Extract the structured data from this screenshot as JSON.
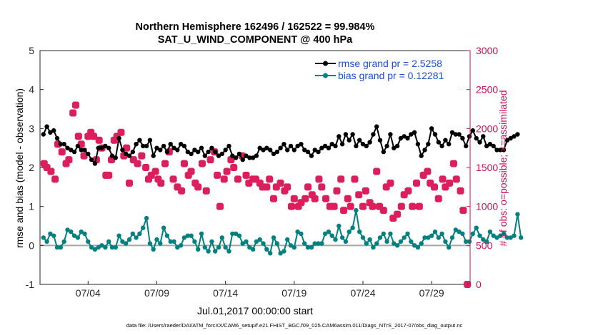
{
  "chart_data": {
    "type": "line",
    "title": "Northern Hemisphere 162496 / 162522 = 99.984%",
    "subtitle": "SAT_U_WIND_COMPONENT @ 400 hPa",
    "xlabel": "Jul.01,2017 00:00:00 start",
    "ylabel": "rmse and bias (model - observation)",
    "y2label": "# of obs: o=possible; ×=assimilated",
    "xlim": [
      0.5,
      31.8
    ],
    "ylim": [
      -1,
      5
    ],
    "y2lim": [
      0,
      3000
    ],
    "x_ticks": [
      {
        "x": 4,
        "label": "07/04"
      },
      {
        "x": 9,
        "label": "07/09"
      },
      {
        "x": 14,
        "label": "07/14"
      },
      {
        "x": 19,
        "label": "07/19"
      },
      {
        "x": 24,
        "label": "07/24"
      },
      {
        "x": 29,
        "label": "07/29"
      }
    ],
    "y_ticks": [
      "-1",
      "0",
      "1",
      "2",
      "3",
      "4",
      "5"
    ],
    "y_tick_values": [
      -1,
      0,
      1,
      2,
      3,
      4,
      5
    ],
    "y2_ticks": [
      "0",
      "500",
      "1000",
      "1500",
      "2000",
      "2500",
      "3000"
    ],
    "y2_tick_values": [
      0,
      500,
      1000,
      1500,
      2000,
      2500,
      3000
    ],
    "legend_position": "top-right",
    "colors": {
      "rmse": "#000000",
      "bias": "#00807f",
      "obs": "#dd1e5d",
      "zero_line": "#a6a6a6",
      "right_axis": "#cc0f52"
    },
    "series": [
      {
        "name": "rmse grand pr = 2.5258",
        "axis": "left",
        "x_start": 0.75,
        "x_step": 0.25,
        "values": [
          2.85,
          3.05,
          2.9,
          2.95,
          2.75,
          2.6,
          2.6,
          2.5,
          2.45,
          2.4,
          2.55,
          2.45,
          2.45,
          2.35,
          2.2,
          2.1,
          2.5,
          2.5,
          2.55,
          2.5,
          2.3,
          2.25,
          2.75,
          2.45,
          2.35,
          2.3,
          2.4,
          2.6,
          2.7,
          2.55,
          2.55,
          2.7,
          2.3,
          2.5,
          2.45,
          2.55,
          2.4,
          2.6,
          2.5,
          2.45,
          2.6,
          2.55,
          2.4,
          2.35,
          2.45,
          2.4,
          2.5,
          2.3,
          2.4,
          2.5,
          2.4,
          2.3,
          2.35,
          2.45,
          2.55,
          2.3,
          2.25,
          2.35,
          2.2,
          2.3,
          2.25,
          2.25,
          2.3,
          2.5,
          2.45,
          2.5,
          2.45,
          2.35,
          2.4,
          2.5,
          2.6,
          2.45,
          2.55,
          2.45,
          2.55,
          2.6,
          2.45,
          2.4,
          2.3,
          2.45,
          2.4,
          2.5,
          2.55,
          2.5,
          2.6,
          2.55,
          2.8,
          2.6,
          2.85,
          2.7,
          2.85,
          2.55,
          2.7,
          2.6,
          2.55,
          2.65,
          2.85,
          3.05,
          2.7,
          2.4,
          2.55,
          2.85,
          2.5,
          2.55,
          2.75,
          2.8,
          2.75,
          2.85,
          2.9,
          2.6,
          2.3,
          2.45,
          2.6,
          3.0,
          2.85,
          2.65,
          2.55,
          2.7,
          2.6,
          2.9,
          2.85,
          2.85,
          2.75,
          2.55,
          2.8,
          2.95,
          2.75,
          2.65,
          2.8,
          2.55,
          2.6,
          2.55,
          2.45,
          2.45,
          2.45,
          2.7,
          2.75,
          2.8,
          2.85
        ]
      },
      {
        "name": "bias grand pr = 0.12281",
        "axis": "left",
        "x_start": 0.75,
        "x_step": 0.25,
        "values": [
          0.2,
          0.1,
          0.3,
          0.25,
          -0.05,
          -0.05,
          0.1,
          0.4,
          0.35,
          0.25,
          0.2,
          0.35,
          0.3,
          0.1,
          -0.05,
          -0.1,
          -0.05,
          0.0,
          -0.05,
          0.1,
          -0.05,
          -0.05,
          0.25,
          0.1,
          0.05,
          0.15,
          0.3,
          0.2,
          0.3,
          0.45,
          0.7,
          0.05,
          -0.1,
          0.15,
          0.05,
          0.45,
          0.25,
          0.1,
          0.1,
          -0.05,
          0.0,
          0.2,
          0.25,
          0.25,
          0.1,
          -0.1,
          0.3,
          -0.05,
          -0.15,
          0.1,
          -0.15,
          -0.05,
          0.2,
          -0.05,
          -0.15,
          0.3,
          0.3,
          0.25,
          0.05,
          0.1,
          -0.05,
          -0.1,
          0.1,
          0.15,
          0.05,
          -0.1,
          -0.2,
          0.2,
          0.05,
          -0.2,
          -0.15,
          0.15,
          0.0,
          -0.05,
          0.35,
          0.3,
          0.05,
          -0.05,
          -0.05,
          0.05,
          0.05,
          0.05,
          0.3,
          0.35,
          0.25,
          0.15,
          0.5,
          0.2,
          0.1,
          0.35,
          0.45,
          0.9,
          0.35,
          0.2,
          0.05,
          0.15,
          -0.05,
          0.05,
          0.2,
          0.3,
          0.1,
          0.3,
          0.05,
          0.0,
          0.1,
          0.2,
          0.3,
          0.1,
          0.0,
          -0.05,
          0.05,
          0.2,
          0.2,
          0.25,
          0.35,
          0.2,
          0.3,
          0.1,
          -0.05,
          0.2,
          0.4,
          0.35,
          0.3,
          0.1,
          0.1,
          0.3,
          0.45,
          0.25,
          0.15,
          0.1,
          0.35,
          0.25,
          0.2,
          0.25,
          0.3,
          0.2,
          0.2,
          0.25,
          0.8,
          0.2
        ]
      },
      {
        "name": "# of obs possible / assimilated",
        "axis": "right",
        "type": "scatter",
        "x": [
          0.8,
          1.0,
          1.3,
          1.6,
          1.8,
          2.1,
          2.4,
          2.6,
          2.9,
          3.1,
          3.3,
          3.5,
          3.7,
          4.0,
          4.2,
          4.4,
          4.6,
          4.8,
          5.0,
          5.3,
          5.5,
          5.7,
          5.9,
          6.1,
          6.4,
          6.6,
          6.8,
          7.0,
          7.3,
          7.6,
          7.9,
          8.2,
          8.4,
          8.6,
          8.9,
          9.1,
          9.3,
          9.6,
          9.9,
          10.2,
          10.5,
          10.8,
          11.0,
          11.3,
          11.5,
          11.8,
          12.0,
          12.3,
          12.6,
          12.9,
          13.2,
          13.4,
          13.6,
          13.9,
          14.1,
          14.4,
          14.6,
          14.9,
          15.2,
          15.5,
          15.7,
          16.0,
          16.2,
          16.5,
          16.7,
          17.0,
          17.2,
          17.5,
          17.7,
          18.0,
          18.3,
          18.5,
          18.8,
          19.0,
          19.3,
          19.5,
          19.8,
          20.0,
          20.3,
          20.5,
          20.8,
          21.0,
          21.3,
          21.6,
          21.9,
          22.1,
          22.4,
          22.6,
          22.9,
          23.1,
          23.4,
          23.7,
          24.0,
          24.2,
          24.5,
          24.7,
          25.0,
          25.2,
          25.5,
          25.7,
          26.0,
          26.2,
          26.5,
          26.8,
          27.0,
          27.3,
          27.6,
          27.9,
          28.1,
          28.4,
          28.7,
          28.9,
          29.2,
          29.5,
          29.8,
          30.0,
          30.3,
          30.6,
          30.8,
          31.1,
          31.3,
          31.6
        ],
        "values": [
          1550,
          1500,
          1450,
          1350,
          1800,
          1700,
          1550,
          1600,
          2200,
          2300,
          1900,
          1800,
          1650,
          1900,
          1950,
          1900,
          1600,
          1850,
          1750,
          1400,
          1400,
          1600,
          1850,
          1900,
          1950,
          1650,
          1750,
          1300,
          1600,
          1550,
          1650,
          1500,
          1350,
          1400,
          1450,
          1350,
          1300,
          1550,
          1700,
          1350,
          1250,
          1200,
          1550,
          1400,
          1450,
          1300,
          1250,
          1550,
          1200,
          1600,
          1700,
          1400,
          1000,
          1350,
          1450,
          1600,
          1500,
          1350,
          1650,
          1400,
          1300,
          1350,
          1350,
          1300,
          1250,
          1250,
          1350,
          1100,
          1250,
          1300,
          1200,
          1250,
          1000,
          1100,
          1000,
          1050,
          1100,
          1250,
          1150,
          1100,
          1350,
          1250,
          1100,
          1000,
          1000,
          1200,
          1350,
          950,
          1100,
          1000,
          1350,
          1150,
          1000,
          1200,
          1050,
          1000,
          1450,
          1000,
          950,
          1250,
          1300,
          850,
          900,
          1000,
          1150,
          1200,
          1000,
          1300,
          1000,
          1400,
          1450,
          1300,
          1250,
          1100,
          1350,
          1250,
          1300,
          1550,
          1350,
          1200,
          950,
          0
        ]
      }
    ],
    "footnote": "data file: /Users/raeder/DAI/ATM_forcXX/CAM6_setup/f.e21.FHIST_BGC.f09_025.CAM6assim.011/Diags_NTrS_2017-07/obs_diag_output.nc"
  }
}
